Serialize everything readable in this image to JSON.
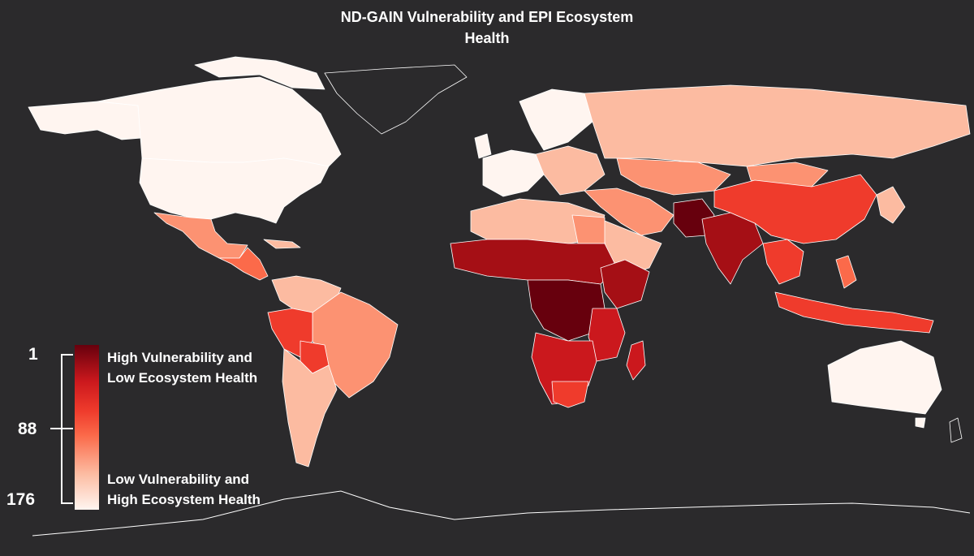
{
  "title_line1": "ND-GAIN Vulnerability and EPI Ecosystem",
  "title_line2": "Health",
  "legend": {
    "rank_top": "1",
    "rank_mid": "88",
    "rank_bottom": "176",
    "high_line1": "High Vulnerability and",
    "high_line2": "Low Ecosystem Health",
    "low_line1": "Low Vulnerability and",
    "low_line2": "High Ecosystem Health",
    "color_high": "#67000d",
    "color_low": "#fff5f0"
  },
  "colors": {
    "background": "#2b2a2c",
    "border": "#ffffff"
  }
}
